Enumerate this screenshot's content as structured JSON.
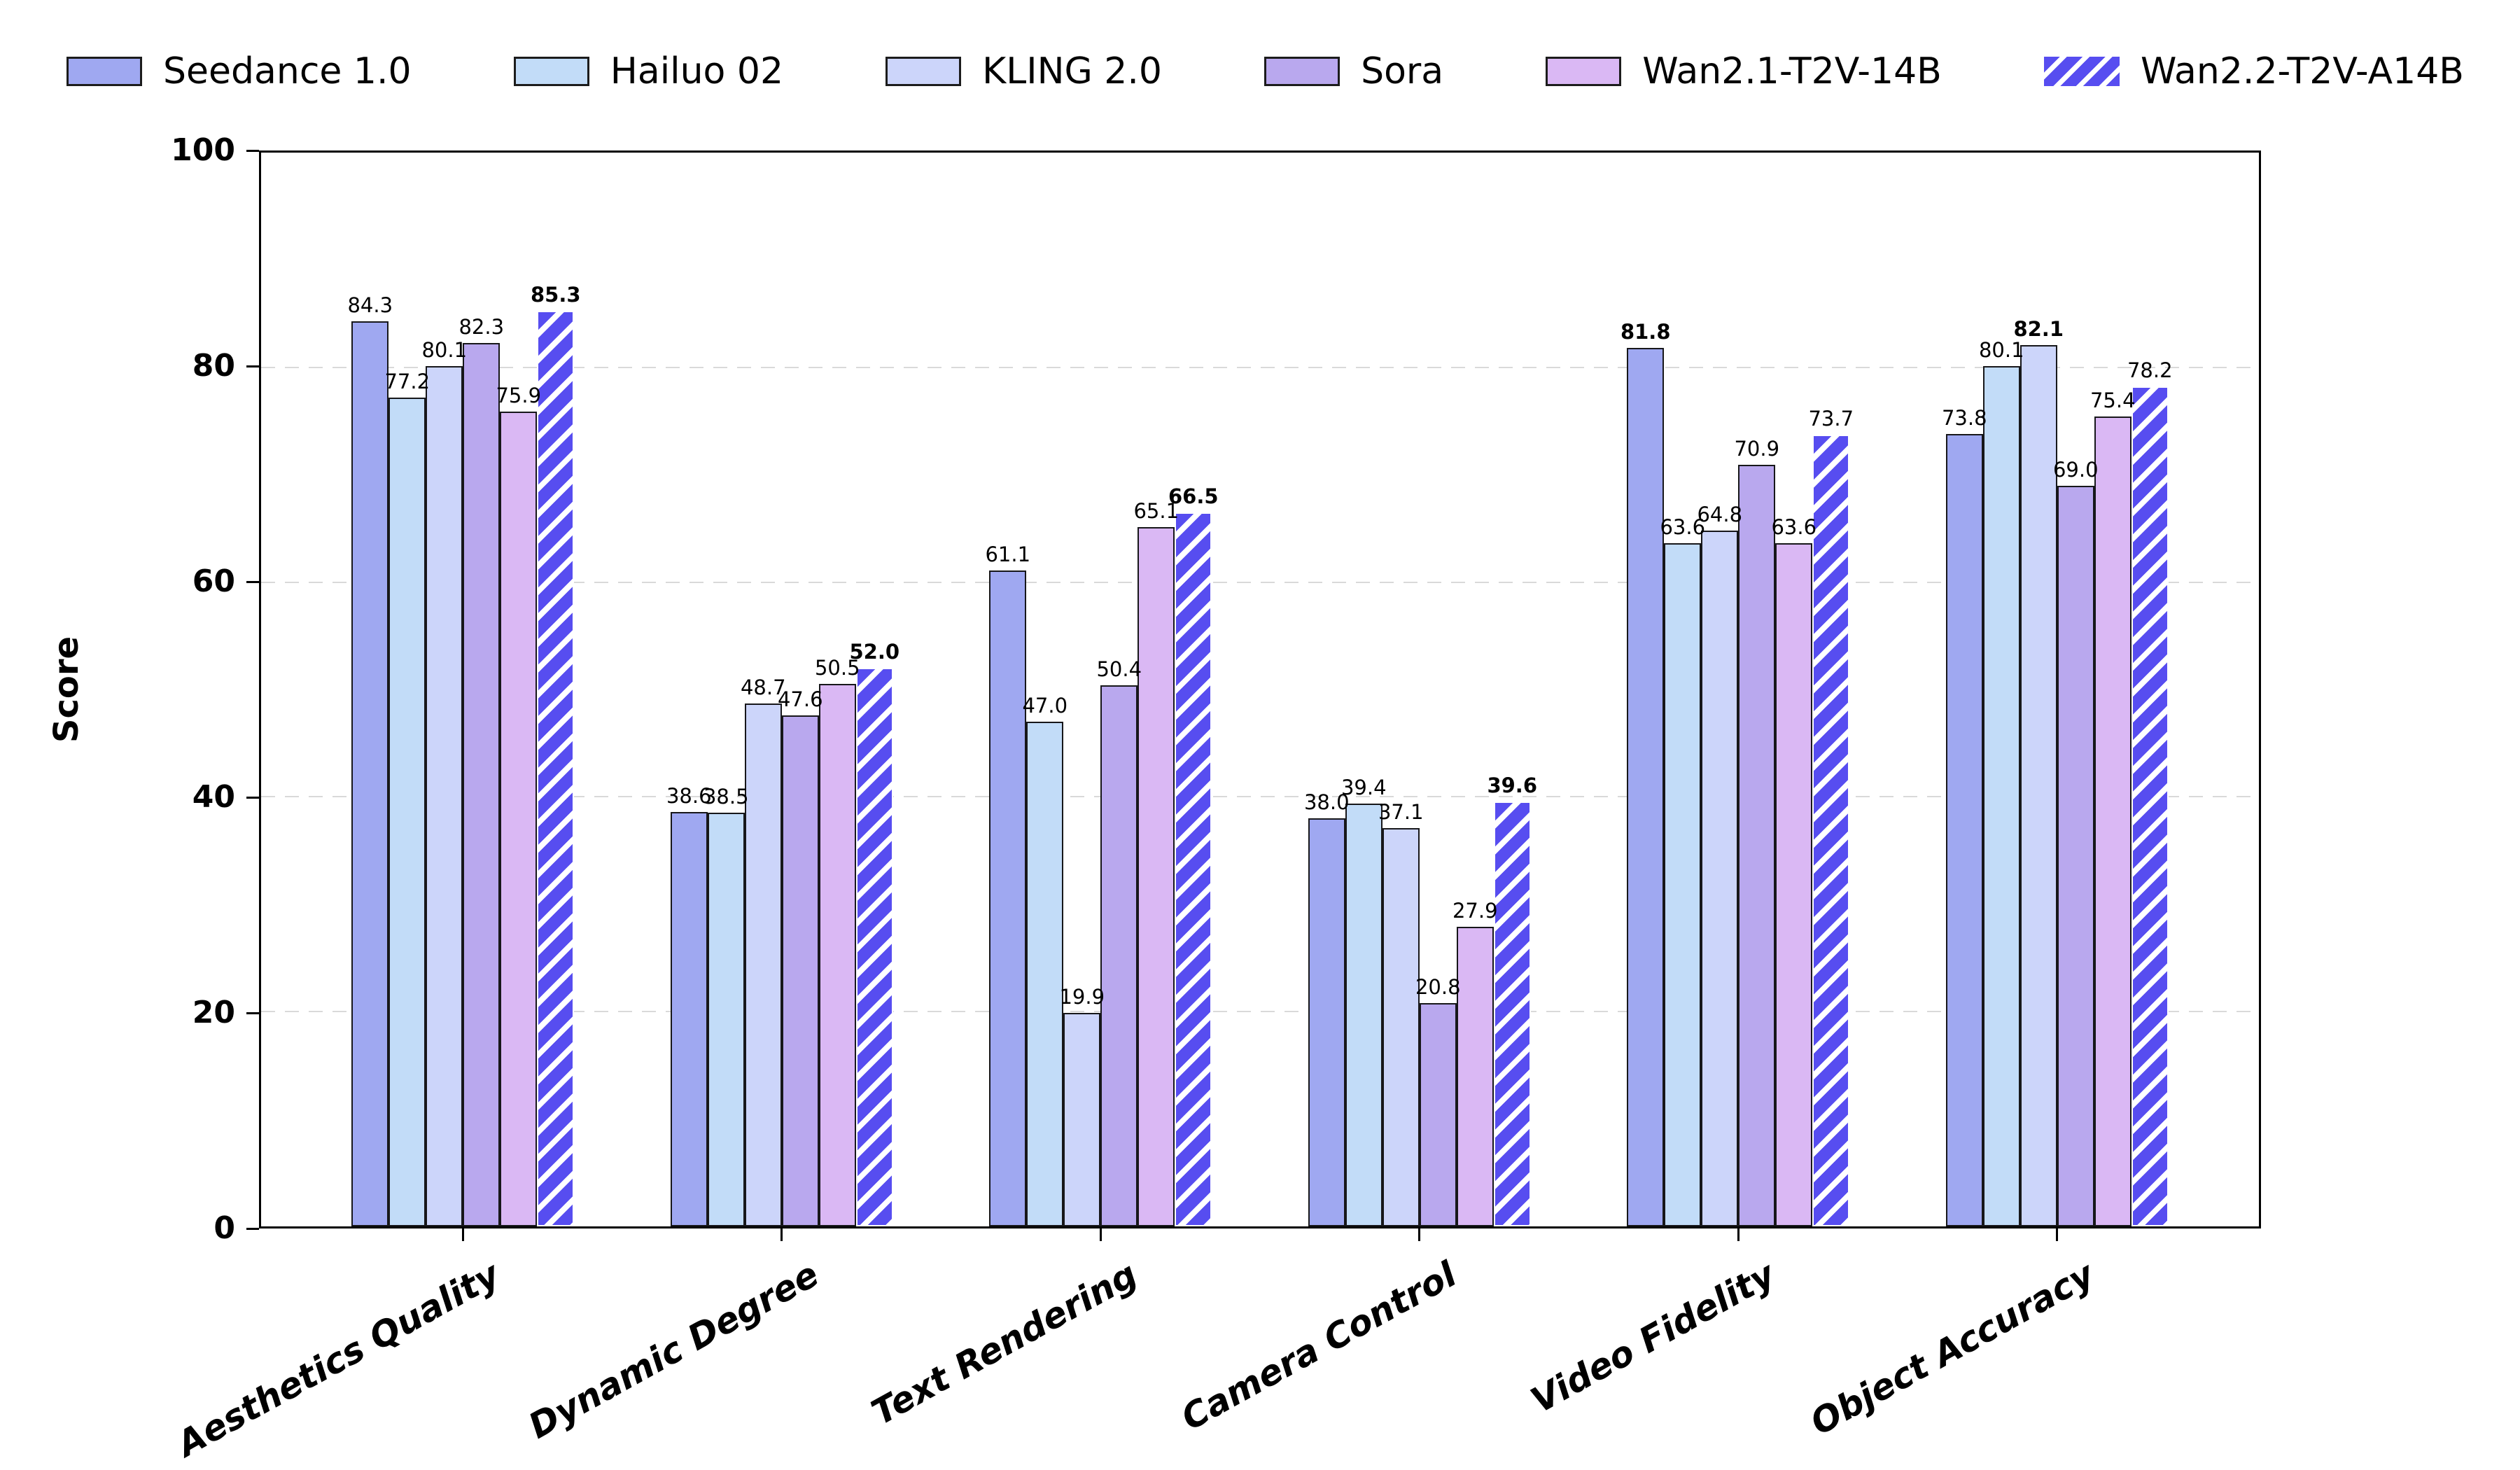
{
  "chart_data": {
    "type": "bar",
    "title": "",
    "xlabel": "",
    "ylabel": "Score",
    "ylim": [
      0,
      100
    ],
    "yticks": [
      0,
      20,
      40,
      60,
      80,
      100
    ],
    "grid": {
      "axis": "y",
      "style": "dashed",
      "color": "#d9d9d9",
      "lines_at": [
        20,
        40,
        60,
        80
      ]
    },
    "legend": {
      "position": "top",
      "ncol": 6
    },
    "bar_edge_color": "#17171a",
    "hatch_edge_color": "#ffffff",
    "value_labels": "one decimal, max value per category in bold",
    "categories": [
      "Aesthetics Quality",
      "Dynamic Degree",
      "Text Rendering",
      "Camera Control",
      "Video Fidelity",
      "Object Accuracy"
    ],
    "series": [
      {
        "name": "Seedance 1.0",
        "color": "#9fa8f1",
        "hatch": null,
        "values": [
          84.3,
          38.6,
          61.1,
          38.0,
          81.8,
          73.8
        ]
      },
      {
        "name": "Hailuo 02",
        "color": "#c2dcf8",
        "hatch": null,
        "values": [
          77.2,
          38.5,
          47.0,
          39.4,
          63.6,
          80.1
        ]
      },
      {
        "name": "KLING 2.0",
        "color": "#ccd5fa",
        "hatch": null,
        "values": [
          80.1,
          48.7,
          19.9,
          37.1,
          64.8,
          82.1
        ]
      },
      {
        "name": "Sora",
        "color": "#b9a8ee",
        "hatch": null,
        "values": [
          82.3,
          47.6,
          50.4,
          20.8,
          70.9,
          69.0
        ]
      },
      {
        "name": "Wan2.1-T2V-14B",
        "color": "#dab8f4",
        "hatch": null,
        "values": [
          75.9,
          50.5,
          65.1,
          27.9,
          63.6,
          75.4
        ]
      },
      {
        "name": "Wan2.2-T2V-A14B",
        "color": "#574df0",
        "hatch": "/",
        "hatch_color": "#ffffff",
        "values": [
          85.3,
          52.0,
          66.5,
          39.6,
          73.7,
          78.2
        ]
      }
    ]
  }
}
